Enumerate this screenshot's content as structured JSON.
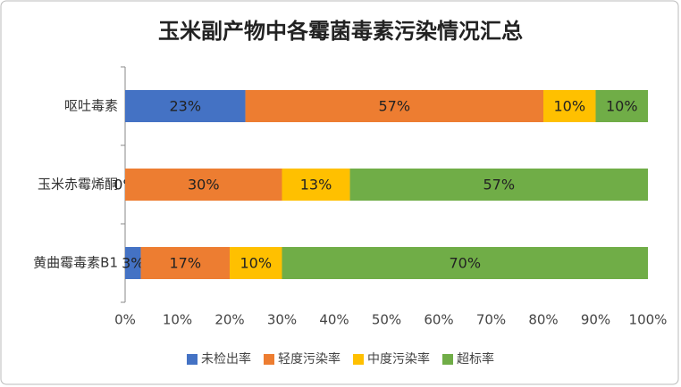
{
  "chart_data": {
    "type": "stacked_barh",
    "title": "玉米副产物中各霉菌毒素污染情况汇总",
    "categories": [
      "呕吐毒素",
      "玉米赤霉烯酮",
      "黄曲霉毒素B1"
    ],
    "series": [
      {
        "name": "未检出率",
        "color": "#4472c4",
        "values": [
          23,
          0,
          3
        ],
        "value_labels": [
          "23%",
          "0%",
          "3%"
        ]
      },
      {
        "name": "轻度污染率",
        "color": "#ed7d31",
        "values": [
          57,
          30,
          17
        ],
        "value_labels": [
          "57%",
          "30%",
          "17%"
        ]
      },
      {
        "name": "中度污染率",
        "color": "#ffc000",
        "values": [
          10,
          13,
          10
        ],
        "value_labels": [
          "10%",
          "13%",
          "10%"
        ]
      },
      {
        "name": "超标率",
        "color": "#70ad47",
        "values": [
          10,
          57,
          70
        ],
        "value_labels": [
          "10%",
          "57%",
          "70%"
        ]
      }
    ],
    "xlim": [
      0,
      100
    ],
    "xticks": [
      {
        "value": 0,
        "label": "0%"
      },
      {
        "value": 10,
        "label": "10%"
      },
      {
        "value": 20,
        "label": "20%"
      },
      {
        "value": 30,
        "label": "30%"
      },
      {
        "value": 40,
        "label": "40%"
      },
      {
        "value": 50,
        "label": "50%"
      },
      {
        "value": 60,
        "label": "60%"
      },
      {
        "value": 70,
        "label": "70%"
      },
      {
        "value": 80,
        "label": "80%"
      },
      {
        "value": 90,
        "label": "90%"
      },
      {
        "value": 100,
        "label": "100%"
      }
    ],
    "legend": "bottom"
  }
}
